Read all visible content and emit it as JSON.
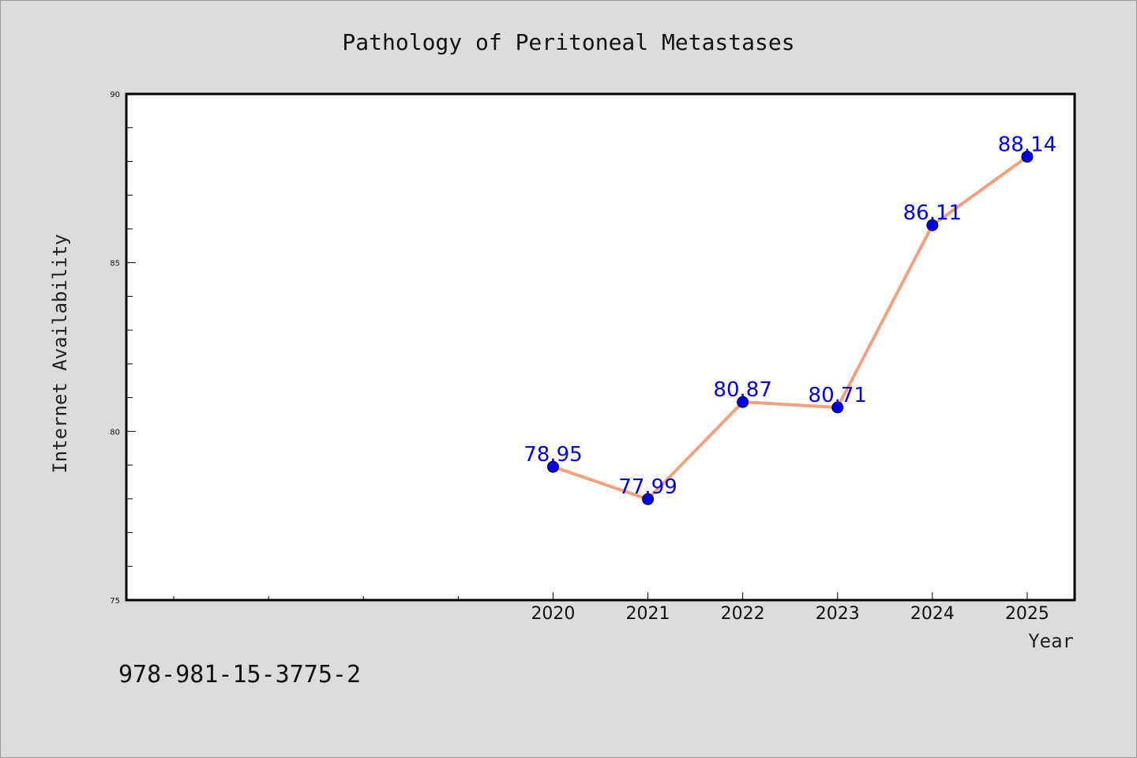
{
  "chart_data": {
    "type": "line",
    "title": "Pathology of Peritoneal Metastases",
    "xlabel": "Year",
    "ylabel": "Internet Availability",
    "x": [
      2020,
      2021,
      2022,
      2023,
      2024,
      2025
    ],
    "x_tick_labels": [
      "2020",
      "2021",
      "2022",
      "2023",
      "2024",
      "2025"
    ],
    "series": [
      {
        "values": [
          78.95,
          77.99,
          80.87,
          80.71,
          86.11,
          88.14
        ],
        "labels": [
          "78.95",
          "77.99",
          "80.87",
          "80.71",
          "86.11",
          "88.14"
        ]
      }
    ],
    "xlim": [
      2015.5,
      2025.5
    ],
    "ylim": [
      75,
      90
    ],
    "y_ticks": [
      75,
      80,
      85,
      90
    ],
    "y_tick_labels": [
      "75",
      "80",
      "85",
      "90"
    ],
    "y_minor_step": 1,
    "x_minor_ticks": [
      2016,
      2017,
      2018,
      2019
    ],
    "grid": false,
    "colors": {
      "line": "#f4a07c",
      "marker": "#0000ee",
      "data_label": "#0000ee",
      "background": "#dcdcdc",
      "plot_background": "#ffffff"
    }
  },
  "footer": {
    "isbn": "978-981-15-3775-2"
  }
}
